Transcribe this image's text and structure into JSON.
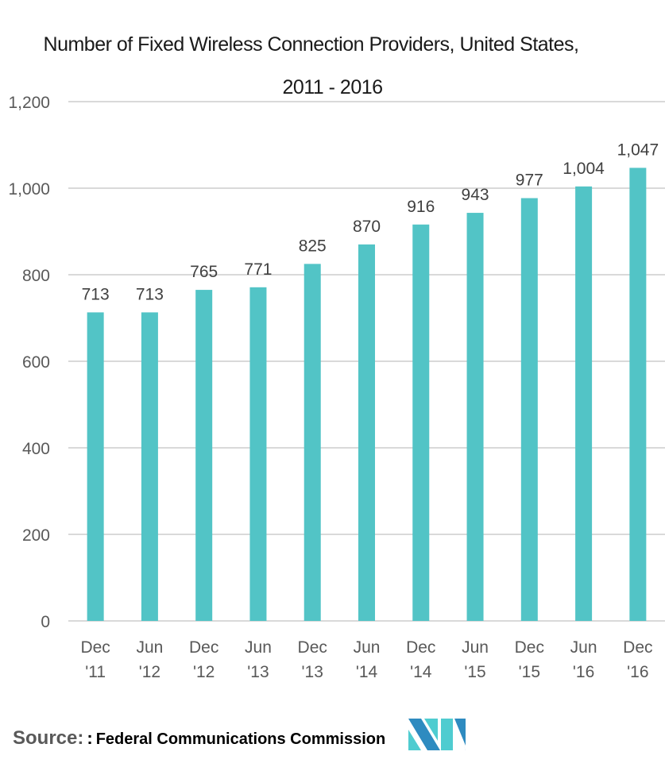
{
  "chart_data": {
    "type": "bar",
    "title": "Number of Fixed Wireless Connection Providers, United States,",
    "subtitle": "2011 - 2016",
    "categories": [
      [
        "Dec",
        "'11"
      ],
      [
        "Jun",
        "'12"
      ],
      [
        "Dec",
        "'12"
      ],
      [
        "Jun",
        "'13"
      ],
      [
        "Dec",
        "'13"
      ],
      [
        "Jun",
        "'14"
      ],
      [
        "Dec",
        "'14"
      ],
      [
        "Jun",
        "'15"
      ],
      [
        "Dec",
        "'15"
      ],
      [
        "Jun",
        "'16"
      ],
      [
        "Dec",
        "'16"
      ]
    ],
    "values": [
      713,
      713,
      765,
      771,
      825,
      870,
      916,
      943,
      977,
      1004,
      1047
    ],
    "data_labels": [
      "713",
      "713",
      "765",
      "771",
      "825",
      "870",
      "916",
      "943",
      "977",
      "1,004",
      "1,047"
    ],
    "ylim": [
      0,
      1200
    ],
    "yticks": [
      0,
      200,
      400,
      600,
      800,
      1000,
      1200
    ],
    "ytick_labels": [
      "0",
      "200",
      "400",
      "600",
      "800",
      "1,000",
      "1,200"
    ],
    "xlabel": "",
    "ylabel": "",
    "grid": true,
    "legend": "none",
    "colors": {
      "bar": "#52C4C6",
      "grid": "#D9D9D9",
      "text": "#404040"
    }
  },
  "source": {
    "label": "Source:",
    "colon": ":",
    "value": "Federal Communications Commission"
  },
  "logo": {
    "icon": "mordor-intelligence-logo-icon",
    "colors": {
      "dark": "#2E8BC0",
      "light": "#4FCCD0"
    }
  }
}
